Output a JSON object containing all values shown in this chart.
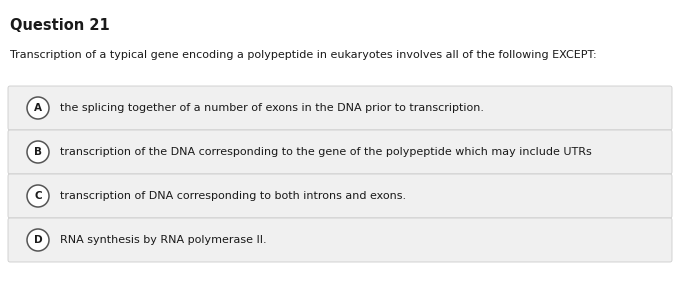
{
  "title": "Question 21",
  "question": "Transcription of a typical gene encoding a polypeptide in eukaryotes involves all of the following EXCEPT:",
  "options": [
    {
      "label": "A",
      "text": "the splicing together of a number of exons in the DNA prior to transcription."
    },
    {
      "label": "B",
      "text": "transcription of the DNA corresponding to the gene of the polypeptide which may include UTRs"
    },
    {
      "label": "C",
      "text": "transcription of DNA corresponding to both introns and exons."
    },
    {
      "label": "D",
      "text": "RNA synthesis by RNA polymerase II."
    }
  ],
  "bg_color": "#ffffff",
  "option_box_color": "#f0f0f0",
  "option_box_border": "#cccccc",
  "title_fontsize": 10.5,
  "question_fontsize": 8.0,
  "option_fontsize": 8.0,
  "text_color": "#1a1a1a",
  "circle_edge_color": "#555555",
  "circle_face_color": "#ffffff",
  "label_fontsize": 7.5
}
